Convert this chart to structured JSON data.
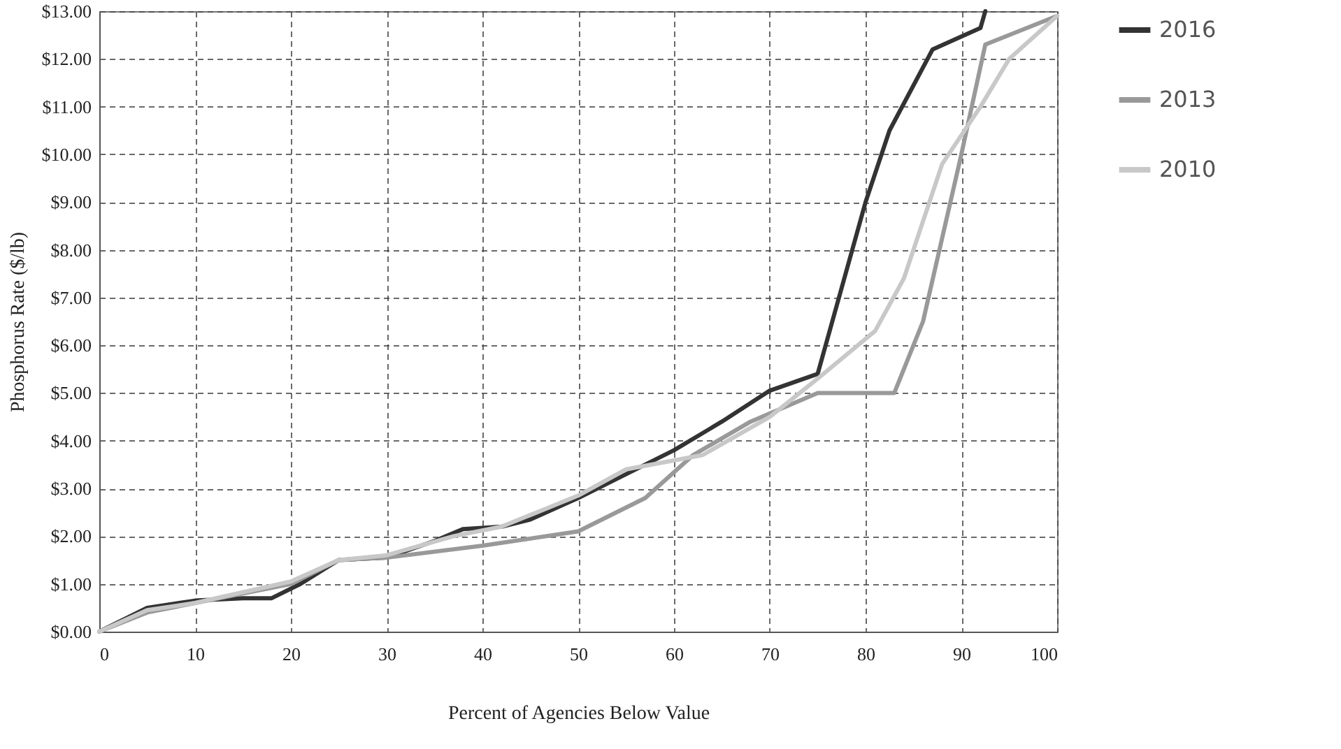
{
  "chart_data": {
    "type": "line",
    "xlabel": "Percent of Agencies Below Value",
    "ylabel": "Phosphorus Rate ($/lb)",
    "xlim": [
      0,
      100
    ],
    "xticks": [
      0,
      10,
      20,
      30,
      40,
      50,
      60,
      70,
      80,
      90,
      100
    ],
    "ylim": [
      0,
      13
    ],
    "yticks": [
      {
        "value": 0,
        "label": "$0.00"
      },
      {
        "value": 1,
        "label": "$1.00"
      },
      {
        "value": 2,
        "label": "$2.00"
      },
      {
        "value": 3,
        "label": "$3.00"
      },
      {
        "value": 4,
        "label": "$4.00"
      },
      {
        "value": 5,
        "label": "$5.00"
      },
      {
        "value": 6,
        "label": "$6.00"
      },
      {
        "value": 7,
        "label": "$7.00"
      },
      {
        "value": 8,
        "label": "$8.00"
      },
      {
        "value": 9,
        "label": "$9.00"
      },
      {
        "value": 10,
        "label": "$10.00"
      },
      {
        "value": 11,
        "label": "$11.00"
      },
      {
        "value": 12,
        "label": "$12.00"
      },
      {
        "value": 13,
        "label": "$13.00"
      }
    ],
    "grid": true,
    "legend": "right",
    "marker": "none",
    "line_style": "solid",
    "series": [
      {
        "name": "2016",
        "color": "#333333",
        "x": [
          0,
          5,
          10,
          15,
          18,
          21,
          25,
          30,
          35,
          38,
          42,
          45,
          50,
          55,
          60,
          65,
          70,
          75,
          80,
          82.5,
          87,
          92,
          92.5
        ],
        "values": [
          0,
          0.5,
          0.65,
          0.7,
          0.7,
          1.0,
          1.5,
          1.55,
          1.9,
          2.15,
          2.2,
          2.35,
          2.8,
          3.3,
          3.8,
          4.4,
          5.05,
          5.4,
          9.0,
          10.5,
          12.2,
          12.65,
          13
        ]
      },
      {
        "name": "2013",
        "color": "#999999",
        "x": [
          0,
          5,
          10,
          20,
          25,
          30,
          40,
          50,
          57,
          62,
          68,
          75,
          83,
          86,
          90,
          92.5,
          100
        ],
        "values": [
          0,
          0.4,
          0.6,
          1.0,
          1.5,
          1.55,
          1.8,
          2.1,
          2.8,
          3.7,
          4.4,
          5.0,
          5.0,
          6.5,
          10.0,
          12.3,
          12.9
        ]
      },
      {
        "name": "2010",
        "color": "#c8c8c8",
        "x": [
          0,
          5,
          10,
          20,
          25,
          30,
          37,
          42,
          50,
          55,
          63,
          70,
          75,
          81,
          84,
          88,
          92,
          95,
          100
        ],
        "values": [
          0,
          0.45,
          0.6,
          1.05,
          1.5,
          1.6,
          2.0,
          2.2,
          2.85,
          3.4,
          3.7,
          4.5,
          5.3,
          6.3,
          7.4,
          9.8,
          11.0,
          12.0,
          12.9
        ]
      }
    ]
  }
}
